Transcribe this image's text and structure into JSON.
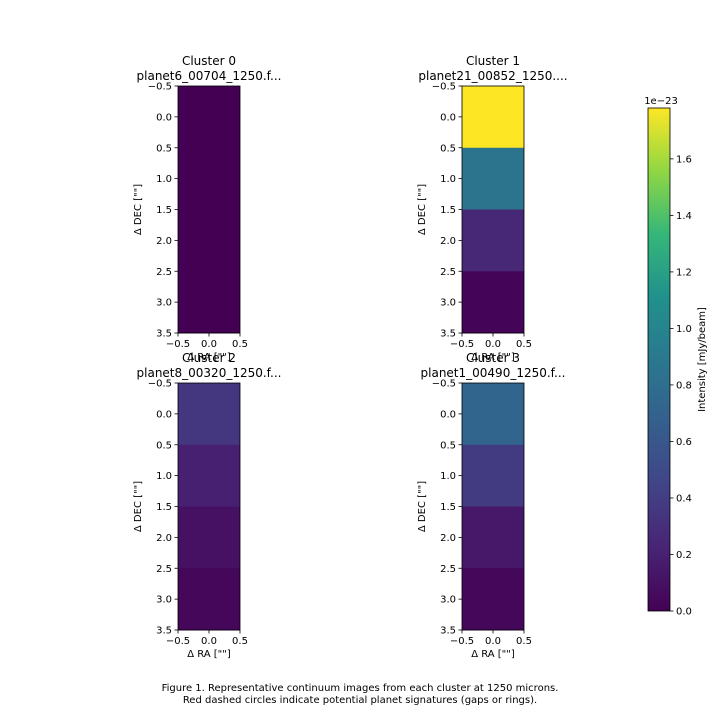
{
  "chart_data": {
    "type": "heatmap",
    "panels": [
      {
        "title": "Cluster 0",
        "subtitle": "planet6_00704_1250.f...",
        "xlabel": "Δ RA [\"\"]",
        "ylabel": "Δ DEC [\"\"]",
        "xlim": [
          -0.5,
          0.5
        ],
        "ylim": [
          -0.5,
          3.5
        ],
        "xticks": [
          "−0.5",
          "0.0",
          "0.5"
        ],
        "yticks": [
          "−0.5",
          "0.0",
          "0.5",
          "1.0",
          "1.5",
          "2.0",
          "2.5",
          "3.0",
          "3.5"
        ],
        "pixel_values": [
          0.0,
          0.0,
          0.0,
          0.0
        ]
      },
      {
        "title": "Cluster 1",
        "subtitle": "planet21_00852_1250....",
        "xlabel": "Δ RA [\"\"]",
        "ylabel": "Δ DEC [\"\"]",
        "xlim": [
          -0.5,
          0.5
        ],
        "ylim": [
          -0.5,
          3.5
        ],
        "xticks": [
          "−0.5",
          "0.0",
          "0.5"
        ],
        "yticks": [
          "−0.5",
          "0.0",
          "0.5",
          "1.0",
          "1.5",
          "2.0",
          "2.5",
          "3.0",
          "3.5"
        ],
        "pixel_values": [
          1.78,
          0.85,
          0.25,
          0.02
        ]
      },
      {
        "title": "Cluster 2",
        "subtitle": "planet8_00320_1250.f...",
        "xlabel": "Δ RA [\"\"]",
        "ylabel": "Δ DEC [\"\"]",
        "xlim": [
          -0.5,
          0.5
        ],
        "ylim": [
          -0.5,
          3.5
        ],
        "xticks": [
          "−0.5",
          "0.0",
          "0.5"
        ],
        "yticks": [
          "−0.5",
          "0.0",
          "0.5",
          "1.0",
          "1.5",
          "2.0",
          "2.5",
          "3.0",
          "3.5"
        ],
        "pixel_values": [
          0.35,
          0.2,
          0.1,
          0.04
        ]
      },
      {
        "title": "Cluster 3",
        "subtitle": "planet1_00490_1250.f...",
        "xlabel": "Δ RA [\"\"]",
        "ylabel": "Δ DEC [\"\"]",
        "xlim": [
          -0.5,
          0.5
        ],
        "ylim": [
          -0.5,
          3.5
        ],
        "xticks": [
          "−0.5",
          "0.0",
          "0.5"
        ],
        "yticks": [
          "−0.5",
          "0.0",
          "0.5",
          "1.0",
          "1.5",
          "2.0",
          "2.5",
          "3.0",
          "3.5"
        ],
        "pixel_values": [
          0.72,
          0.38,
          0.14,
          0.04
        ]
      }
    ],
    "colorbar": {
      "label": "Intensity [mJy/beam]",
      "multiplier": "1e−23",
      "range": [
        0,
        1.78
      ],
      "ticks": [
        0.0,
        0.2,
        0.4,
        0.6,
        0.8,
        1.0,
        1.2,
        1.4,
        1.6
      ],
      "tick_labels": [
        "0.0",
        "0.2",
        "0.4",
        "0.6",
        "0.8",
        "1.0",
        "1.2",
        "1.4",
        "1.6"
      ],
      "colormap": "viridis"
    }
  },
  "caption": {
    "line1": "Figure 1. Representative continuum images from each cluster at 1250 microns.",
    "line2": "Red dashed circles indicate potential planet signatures (gaps or rings)."
  }
}
